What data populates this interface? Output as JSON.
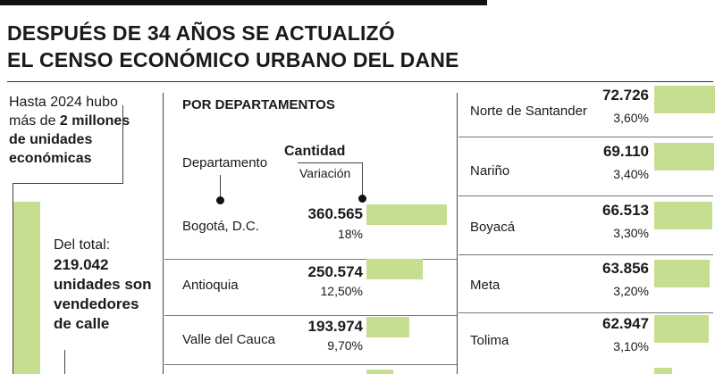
{
  "title_line1": "DESPUÉS DE 34 AÑOS SE ACTUALIZÓ",
  "title_line2": "EL CENSO ECONÓMICO URBANO DEL DANE",
  "intro": {
    "line1": "Hasta 2024 hubo",
    "line2_pre": "más de ",
    "line2_bold": "2 millones",
    "line3": "de unidades",
    "line4": "económicas"
  },
  "sub": {
    "line1": "Del total:",
    "line2": "219.042",
    "line3": "unidades son",
    "line4": "vendedores",
    "line5": "de calle"
  },
  "colors": {
    "bar": "#c5de8f"
  },
  "chart_data": {
    "type": "bar",
    "title": "POR DEPARTAMENTOS",
    "header_departamento": "Departamento",
    "header_cantidad": "Cantidad",
    "header_variacion": "Variación",
    "max_value": 360565,
    "rows": [
      {
        "name": "Bogotá, D.C.",
        "value": 360565,
        "value_label": "360.565",
        "pct": "18%"
      },
      {
        "name": "Antioquia",
        "value": 250574,
        "value_label": "250.574",
        "pct": "12,50%"
      },
      {
        "name": "Valle del Cauca",
        "value": 193974,
        "value_label": "193.974",
        "pct": "9,70%"
      },
      {
        "name": "Norte de Santander",
        "value": 72726,
        "value_label": "72.726",
        "pct": "3,60%"
      },
      {
        "name": "Nariño",
        "value": 69110,
        "value_label": "69.110",
        "pct": "3,40%"
      },
      {
        "name": "Boyacá",
        "value": 66513,
        "value_label": "66.513",
        "pct": "3,30%"
      },
      {
        "name": "Meta",
        "value": 63856,
        "value_label": "63.856",
        "pct": "3,20%"
      },
      {
        "name": "Tolima",
        "value": 62947,
        "value_label": "62.947",
        "pct": "3,10%"
      }
    ]
  }
}
